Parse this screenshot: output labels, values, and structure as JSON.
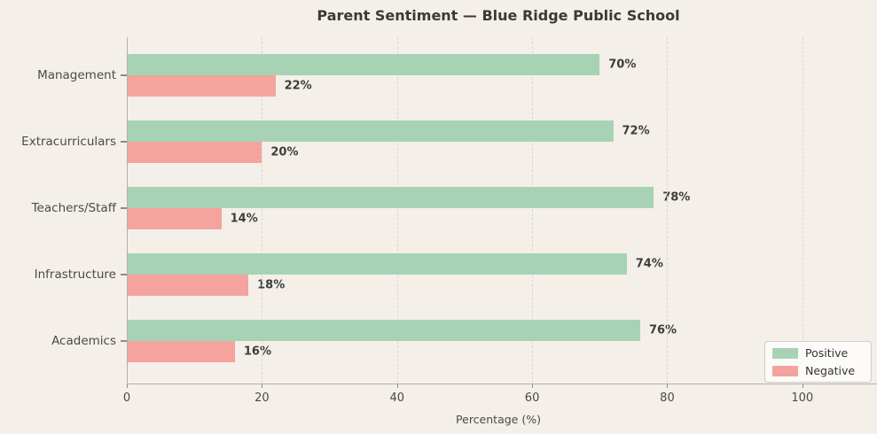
{
  "title": "Parent Sentiment — Blue Ridge Public School",
  "chart_data": {
    "type": "bar",
    "orientation": "horizontal",
    "categories": [
      "Management",
      "Extracurriculars",
      "Teachers/Staff",
      "Infrastructure",
      "Academics"
    ],
    "series": [
      {
        "name": "Positive",
        "values": [
          70,
          72,
          78,
          74,
          76
        ],
        "color": "#a7d3b4"
      },
      {
        "name": "Negative",
        "values": [
          22,
          20,
          14,
          18,
          16
        ],
        "color": "#f4a39e"
      }
    ],
    "value_label_suffix": "%",
    "xlabel": "Percentage (%)",
    "xticks": [
      0,
      20,
      40,
      60,
      80,
      100
    ],
    "xlim": [
      0,
      110
    ],
    "grid": "dashed vertical",
    "legend_position": "lower right"
  },
  "colors": {
    "background": "#f4efe9",
    "positive": "#a7d3b4",
    "negative": "#f4a39e",
    "grid": "#d9d5cf",
    "spine": "#b3afaa",
    "tick": "#8a8a8a",
    "legend_bg": "#fcfbf8",
    "legend_border": "#d2cec8",
    "title_text": "#3a3a3a"
  }
}
